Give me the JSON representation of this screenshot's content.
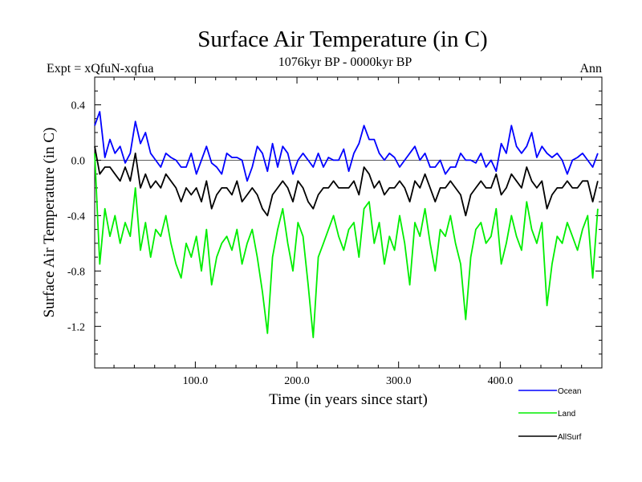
{
  "chart_data": {
    "type": "line",
    "title": "Surface Air Temperature (in C)",
    "subtitle_left": "Expt = xQfuN-xqfua",
    "subtitle_center": "1076kyr BP - 0000kyr BP",
    "subtitle_right": "Ann",
    "xlabel": "Time (in years since start)",
    "ylabel": "Surface Air Temperature (in C)",
    "xlim": [
      1,
      500
    ],
    "ylim": [
      -1.5,
      0.6
    ],
    "x_ticks": [
      100,
      200,
      300,
      400
    ],
    "x_tick_labels": [
      "100.0",
      "200.0",
      "300.0",
      "400.0"
    ],
    "y_ticks": [
      0.4,
      0.0,
      -0.4,
      -0.8,
      -1.2
    ],
    "y_tick_labels": [
      "0.4",
      "0.0",
      "-0.4",
      "-0.8",
      "-1.2"
    ],
    "legend_position": "bottom-right, below plot",
    "series": [
      {
        "name": "Ocean",
        "color": "#0000ff",
        "x_start": 1,
        "x_step": 5,
        "values": [
          0.25,
          0.35,
          0.02,
          0.15,
          0.05,
          0.1,
          -0.02,
          0.05,
          0.28,
          0.12,
          0.2,
          0.05,
          0.0,
          -0.05,
          0.05,
          0.02,
          0.0,
          -0.05,
          -0.05,
          0.05,
          -0.1,
          0.0,
          0.1,
          -0.02,
          -0.05,
          -0.1,
          0.05,
          0.02,
          0.02,
          0.0,
          -0.15,
          -0.05,
          0.1,
          0.05,
          -0.08,
          0.12,
          -0.05,
          0.1,
          0.05,
          -0.1,
          0.0,
          0.05,
          0.0,
          -0.05,
          0.05,
          -0.05,
          0.02,
          0.0,
          0.0,
          0.08,
          -0.08,
          0.05,
          0.12,
          0.25,
          0.15,
          0.15,
          0.05,
          0.0,
          0.05,
          0.02,
          -0.05,
          0.0,
          0.05,
          0.1,
          0.0,
          0.05,
          -0.05,
          -0.05,
          0.0,
          -0.1,
          -0.05,
          -0.05,
          0.05,
          0.0,
          0.0,
          -0.02,
          0.05,
          -0.05,
          0.0,
          -0.08,
          0.12,
          0.05,
          0.25,
          0.1,
          0.05,
          0.1,
          0.2,
          0.02,
          0.1,
          0.05,
          0.02,
          0.05,
          0.0,
          -0.1,
          0.0,
          0.02,
          0.05,
          0.0,
          -0.05,
          0.05
        ]
      },
      {
        "name": "Land",
        "color": "#00ee00",
        "x_start": 1,
        "x_step": 5,
        "values": [
          0.05,
          -0.75,
          -0.35,
          -0.55,
          -0.4,
          -0.6,
          -0.45,
          -0.55,
          -0.2,
          -0.65,
          -0.45,
          -0.7,
          -0.5,
          -0.55,
          -0.4,
          -0.6,
          -0.75,
          -0.85,
          -0.6,
          -0.7,
          -0.55,
          -0.8,
          -0.5,
          -0.9,
          -0.7,
          -0.6,
          -0.55,
          -0.65,
          -0.5,
          -0.75,
          -0.6,
          -0.5,
          -0.7,
          -0.95,
          -1.25,
          -0.7,
          -0.5,
          -0.35,
          -0.6,
          -0.8,
          -0.45,
          -0.55,
          -0.9,
          -1.28,
          -0.7,
          -0.6,
          -0.5,
          -0.4,
          -0.55,
          -0.65,
          -0.5,
          -0.45,
          -0.7,
          -0.35,
          -0.3,
          -0.6,
          -0.45,
          -0.75,
          -0.55,
          -0.65,
          -0.4,
          -0.6,
          -0.9,
          -0.45,
          -0.55,
          -0.35,
          -0.6,
          -0.8,
          -0.5,
          -0.55,
          -0.4,
          -0.6,
          -0.75,
          -1.15,
          -0.7,
          -0.5,
          -0.45,
          -0.6,
          -0.55,
          -0.35,
          -0.75,
          -0.6,
          -0.4,
          -0.55,
          -0.65,
          -0.3,
          -0.5,
          -0.6,
          -0.45,
          -1.05,
          -0.75,
          -0.55,
          -0.6,
          -0.45,
          -0.55,
          -0.65,
          -0.5,
          -0.4,
          -0.85,
          -0.35
        ]
      },
      {
        "name": "AllSurf",
        "color": "#000000",
        "x_start": 1,
        "x_step": 5,
        "values": [
          0.1,
          -0.1,
          -0.05,
          -0.05,
          -0.1,
          -0.15,
          -0.05,
          -0.15,
          0.05,
          -0.2,
          -0.1,
          -0.2,
          -0.15,
          -0.2,
          -0.1,
          -0.15,
          -0.2,
          -0.3,
          -0.2,
          -0.25,
          -0.2,
          -0.3,
          -0.15,
          -0.35,
          -0.25,
          -0.2,
          -0.2,
          -0.25,
          -0.15,
          -0.3,
          -0.25,
          -0.2,
          -0.25,
          -0.35,
          -0.4,
          -0.25,
          -0.2,
          -0.15,
          -0.2,
          -0.3,
          -0.15,
          -0.2,
          -0.3,
          -0.35,
          -0.25,
          -0.2,
          -0.2,
          -0.15,
          -0.2,
          -0.2,
          -0.2,
          -0.15,
          -0.25,
          -0.05,
          -0.1,
          -0.2,
          -0.15,
          -0.25,
          -0.2,
          -0.2,
          -0.15,
          -0.2,
          -0.3,
          -0.15,
          -0.2,
          -0.1,
          -0.2,
          -0.3,
          -0.2,
          -0.2,
          -0.15,
          -0.2,
          -0.25,
          -0.4,
          -0.25,
          -0.2,
          -0.15,
          -0.2,
          -0.2,
          -0.1,
          -0.25,
          -0.2,
          -0.1,
          -0.15,
          -0.2,
          -0.05,
          -0.15,
          -0.2,
          -0.15,
          -0.35,
          -0.25,
          -0.2,
          -0.2,
          -0.15,
          -0.2,
          -0.2,
          -0.15,
          -0.15,
          -0.3,
          -0.15
        ]
      }
    ]
  }
}
